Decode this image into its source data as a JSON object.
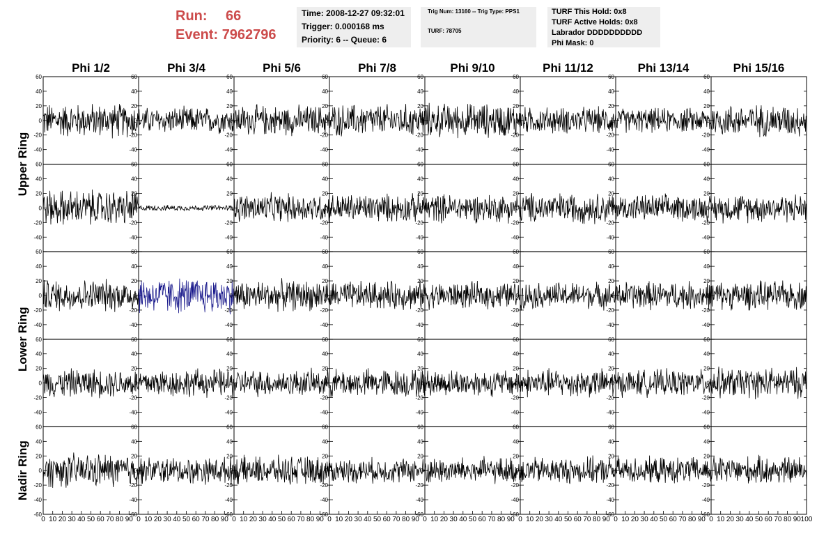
{
  "header": {
    "run_label": "Run:",
    "run_value": "66",
    "event_label": "Event:",
    "event_value": "7962796",
    "time_line": "Time: 2008-12-27 09:32:01",
    "trigger_line": "Trigger: 0.000168 ms",
    "priority_line": "Priority: 6 -- Queue: 6",
    "trig_num_line": "Trig Num: 13160 -- Trig Type: PPS1",
    "turf_line": "TURF: 78705",
    "turf_this_hold": "TURF This Hold: 0x8",
    "turf_active_holds": "TURF Active Holds: 0x8",
    "labrador": "Labrador DDDDDDDDDD",
    "phi_mask": "Phi Mask: 0"
  },
  "colors": {
    "run_event_text": "#cc4b4b",
    "info_box_bg": "#eeeeee",
    "trace_default": "#000000",
    "trace_highlight": "#1a1a8c"
  },
  "chart_data": {
    "type": "line",
    "description_source": "waveform grid",
    "columns": [
      "Phi 1/2",
      "Phi 3/4",
      "Phi 5/6",
      "Phi 7/8",
      "Phi 9/10",
      "Phi 11/12",
      "Phi 13/14",
      "Phi 15/16"
    ],
    "row_groups": [
      "Upper Ring",
      "Lower Ring",
      "Nadir Ring"
    ],
    "rows": 5,
    "ylim": [
      -60,
      60
    ],
    "y_ticks": [
      -60,
      -40,
      -20,
      0,
      20,
      40,
      60
    ],
    "xlim": [
      0,
      100
    ],
    "x_ticks": [
      0,
      10,
      20,
      30,
      40,
      50,
      60,
      70,
      80,
      90,
      100
    ],
    "samples_per_trace": 100,
    "trace_amplitudes": [
      [
        18,
        14,
        16,
        17,
        18,
        14,
        13,
        17
      ],
      [
        19,
        3,
        15,
        15,
        15,
        16,
        14,
        15
      ],
      [
        17,
        19,
        16,
        15,
        14,
        14,
        15,
        15
      ],
      [
        15,
        15,
        14,
        15,
        14,
        15,
        14,
        16
      ],
      [
        18,
        14,
        15,
        13,
        14,
        14,
        14,
        15
      ]
    ],
    "highlighted_trace": {
      "row": 2,
      "col": 1
    },
    "grid": false
  }
}
